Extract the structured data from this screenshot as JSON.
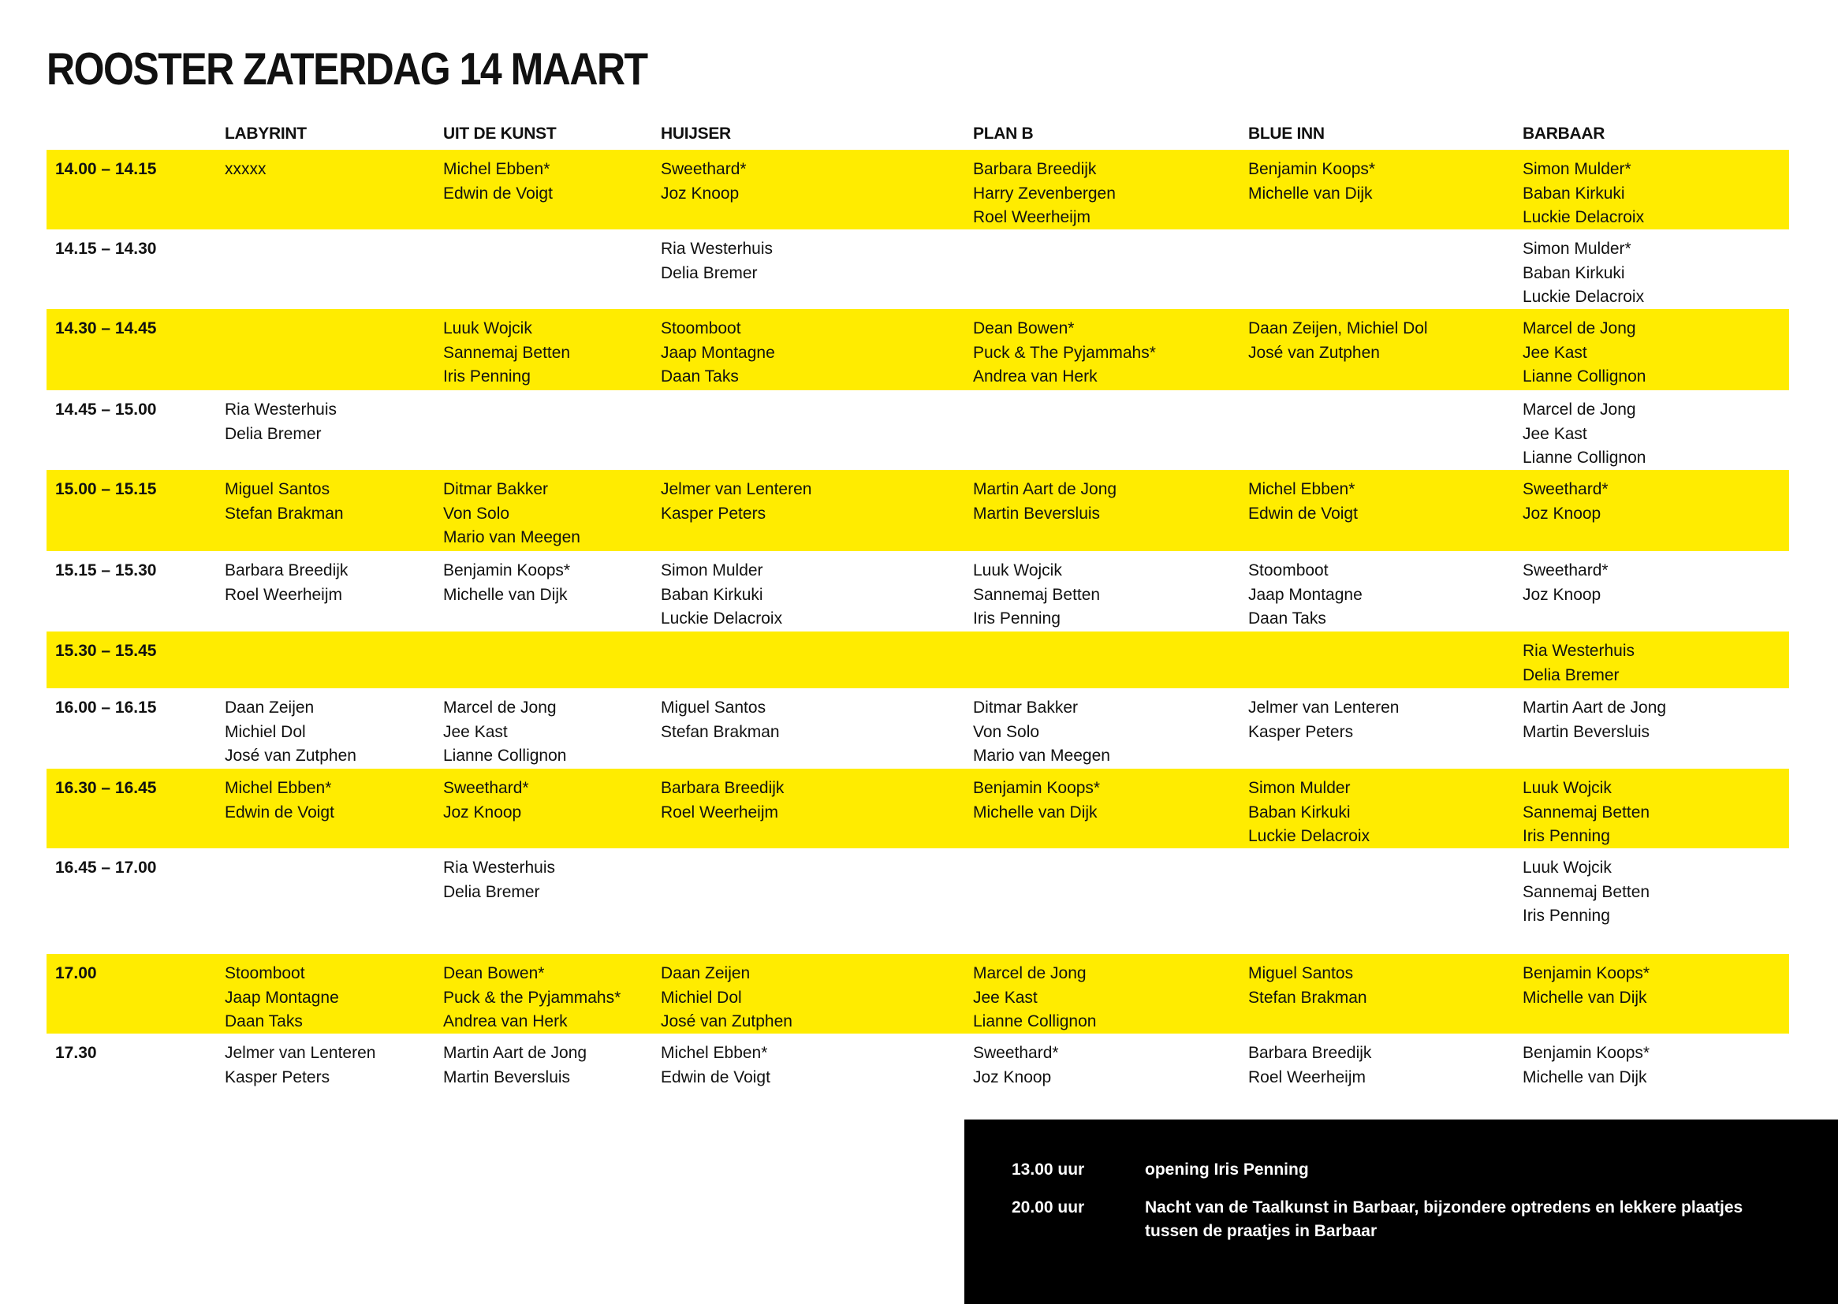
{
  "title": "ROOSTER ZATERDAG 14 MAART",
  "colors": {
    "highlight": "#ffec00",
    "footer_bg": "#000000"
  },
  "columns": [
    "LABYRINT",
    "UIT DE KUNST",
    "HUIJSER",
    "PLAN B",
    "BLUE INN",
    "BARBAAR"
  ],
  "rows": [
    {
      "time": "14.00 – 14.15",
      "highlight": true,
      "cells": [
        [
          "xxxxx"
        ],
        [
          "Michel Ebben*",
          "Edwin de Voigt"
        ],
        [
          "Sweethard*",
          "Joz Knoop"
        ],
        [
          "Barbara Breedijk",
          "Harry Zevenbergen",
          "Roel Weerheijm"
        ],
        [
          "Benjamin Koops*",
          "Michelle van Dijk"
        ],
        [
          "Simon Mulder*",
          "Baban Kirkuki",
          "Luckie Delacroix"
        ]
      ]
    },
    {
      "time": "14.15 – 14.30",
      "highlight": false,
      "cells": [
        [],
        [],
        [
          "Ria Westerhuis",
          "Delia Bremer"
        ],
        [],
        [],
        [
          "Simon Mulder*",
          "Baban Kirkuki",
          "Luckie Delacroix"
        ]
      ]
    },
    {
      "time": "14.30 – 14.45",
      "highlight": true,
      "cells": [
        [],
        [
          "Luuk Wojcik",
          "Sannemaj Betten",
          "Iris Penning"
        ],
        [
          "Stoomboot",
          "Jaap Montagne",
          "Daan Taks"
        ],
        [
          "Dean Bowen*",
          "Puck & The Pyjammahs*",
          "Andrea van Herk"
        ],
        [
          "Daan Zeijen, Michiel Dol",
          "José van Zutphen"
        ],
        [
          "Marcel de Jong",
          "Jee Kast",
          "Lianne Collignon"
        ]
      ]
    },
    {
      "time": "14.45 – 15.00",
      "highlight": false,
      "cells": [
        [
          "Ria Westerhuis",
          "Delia Bremer"
        ],
        [],
        [],
        [],
        [],
        [
          "Marcel de Jong",
          "Jee Kast",
          "Lianne Collignon"
        ]
      ]
    },
    {
      "time": "15.00 – 15.15",
      "highlight": true,
      "cells": [
        [
          "Miguel Santos",
          "Stefan Brakman"
        ],
        [
          "Ditmar Bakker",
          "Von Solo",
          "Mario van Meegen"
        ],
        [
          "Jelmer van Lenteren",
          "Kasper Peters"
        ],
        [
          "Martin Aart de Jong",
          "Martin Beversluis"
        ],
        [
          "Michel Ebben*",
          "Edwin de Voigt"
        ],
        [
          "Sweethard*",
          "Joz Knoop"
        ]
      ]
    },
    {
      "time": "15.15 – 15.30",
      "highlight": false,
      "cells": [
        [
          "Barbara Breedijk",
          "Roel Weerheijm"
        ],
        [
          "Benjamin Koops*",
          "Michelle van Dijk"
        ],
        [
          "Simon Mulder",
          "Baban Kirkuki",
          "Luckie Delacroix"
        ],
        [
          "Luuk Wojcik",
          "Sannemaj Betten",
          "Iris Penning"
        ],
        [
          "Stoomboot",
          "Jaap Montagne",
          "Daan Taks"
        ],
        [
          "Sweethard*",
          "Joz Knoop"
        ]
      ]
    },
    {
      "time": "15.30 – 15.45",
      "highlight": true,
      "cells": [
        [],
        [],
        [],
        [],
        [],
        [
          "Ria Westerhuis",
          "Delia Bremer"
        ]
      ]
    },
    {
      "time": "16.00 – 16.15",
      "highlight": false,
      "cells": [
        [
          "Daan Zeijen",
          "Michiel Dol",
          "José van Zutphen"
        ],
        [
          "Marcel de Jong",
          "Jee Kast",
          "Lianne Collignon"
        ],
        [
          "Miguel Santos",
          "Stefan Brakman"
        ],
        [
          "Ditmar Bakker",
          "Von Solo",
          "Mario van Meegen"
        ],
        [
          "Jelmer van Lenteren",
          "Kasper Peters"
        ],
        [
          "Martin Aart de Jong",
          "Martin Beversluis"
        ]
      ]
    },
    {
      "time": "16.30 – 16.45",
      "highlight": true,
      "cells": [
        [
          "Michel Ebben*",
          "Edwin de Voigt"
        ],
        [
          "Sweethard*",
          "Joz Knoop"
        ],
        [
          "Barbara Breedijk",
          "Roel Weerheijm"
        ],
        [
          "Benjamin Koops*",
          "Michelle van Dijk"
        ],
        [
          "Simon Mulder",
          "Baban Kirkuki",
          "Luckie Delacroix"
        ],
        [
          "Luuk Wojcik",
          "Sannemaj Betten",
          "Iris Penning"
        ]
      ]
    },
    {
      "time": "16.45 – 17.00",
      "highlight": false,
      "cells": [
        [],
        [
          "Ria Westerhuis",
          "Delia Bremer"
        ],
        [],
        [],
        [],
        [
          "Luuk Wojcik",
          "Sannemaj Betten",
          "Iris Penning"
        ]
      ]
    },
    {
      "time": "17.00",
      "highlight": true,
      "cells": [
        [
          "Stoomboot",
          "Jaap Montagne",
          "Daan Taks"
        ],
        [
          "Dean Bowen*",
          "Puck & the Pyjammahs*",
          "Andrea van Herk"
        ],
        [
          "Daan Zeijen",
          "Michiel Dol",
          "José van Zutphen"
        ],
        [
          "Marcel de Jong",
          "Jee Kast",
          "Lianne Collignon"
        ],
        [
          "Miguel Santos",
          "Stefan Brakman"
        ],
        [
          "Benjamin Koops*",
          "Michelle van Dijk"
        ]
      ]
    },
    {
      "time": "17.30",
      "highlight": false,
      "cells": [
        [
          "Jelmer van Lenteren",
          "Kasper Peters"
        ],
        [
          "Martin Aart de Jong",
          "Martin Beversluis"
        ],
        [
          "Michel Ebben*",
          "Edwin de Voigt"
        ],
        [
          "Sweethard*",
          "Joz Knoop"
        ],
        [
          "Barbara Breedijk",
          "Roel Weerheijm"
        ],
        [
          "Benjamin Koops*",
          "Michelle van Dijk"
        ]
      ]
    }
  ],
  "events": [
    {
      "time": "13.00 uur",
      "text": "opening Iris Penning"
    },
    {
      "time": "20.00 uur",
      "text": "Nacht van de Taalkunst in Barbaar, bijzondere optredens en lekkere plaatjes tussen de praatjes in Barbaar"
    }
  ]
}
